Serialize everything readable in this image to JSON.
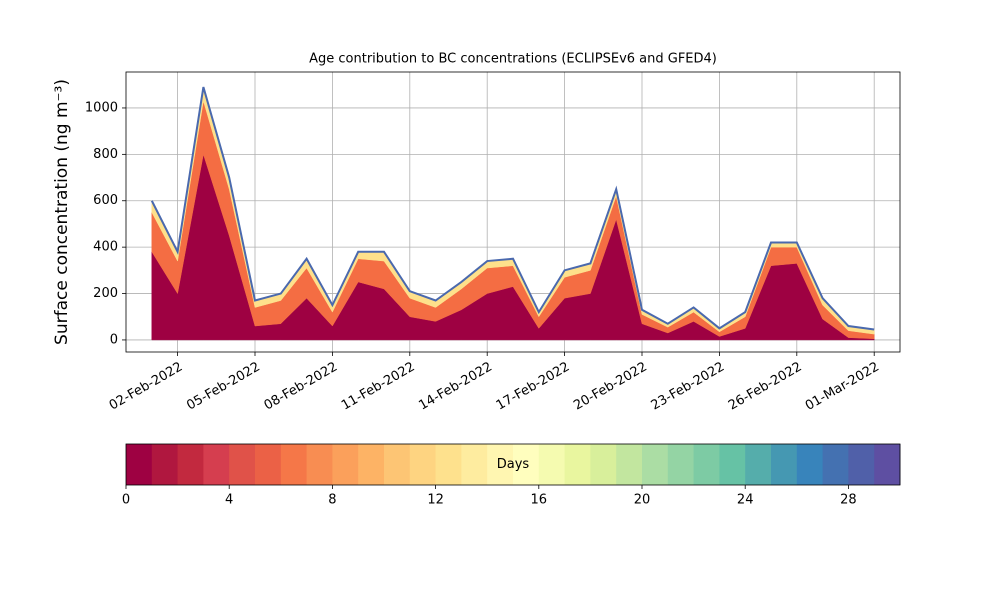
{
  "chart_data": {
    "type": "stacked_area",
    "title": "Age contribution to BC concentrations (ECLIPSEv6 and GFED4)",
    "y_label": "Surface concentration (ng m⁻³)",
    "x": [
      "2022-02-01",
      "2022-02-02",
      "2022-02-03",
      "2022-02-04",
      "2022-02-05",
      "2022-02-06",
      "2022-02-07",
      "2022-02-08",
      "2022-02-09",
      "2022-02-10",
      "2022-02-11",
      "2022-02-12",
      "2022-02-13",
      "2022-02-14",
      "2022-02-15",
      "2022-02-16",
      "2022-02-17",
      "2022-02-18",
      "2022-02-19",
      "2022-02-20",
      "2022-02-21",
      "2022-02-22",
      "2022-02-23",
      "2022-02-24",
      "2022-02-25",
      "2022-02-26",
      "2022-02-27",
      "2022-02-28",
      "2022-03-01"
    ],
    "series": [
      {
        "color": "#9e0142",
        "values": [
          380,
          200,
          800,
          450,
          60,
          70,
          180,
          60,
          250,
          220,
          100,
          80,
          130,
          200,
          230,
          50,
          180,
          200,
          520,
          70,
          30,
          80,
          15,
          50,
          320,
          330,
          90,
          10,
          5
        ]
      },
      {
        "color": "#f46d43",
        "values": [
          170,
          140,
          230,
          200,
          80,
          100,
          130,
          60,
          100,
          120,
          80,
          60,
          90,
          110,
          90,
          50,
          90,
          100,
          100,
          40,
          25,
          40,
          20,
          50,
          80,
          70,
          60,
          30,
          20
        ]
      },
      {
        "color": "#fee08b",
        "values": [
          50,
          40,
          60,
          50,
          30,
          30,
          40,
          30,
          30,
          40,
          30,
          30,
          30,
          30,
          30,
          20,
          30,
          30,
          30,
          20,
          15,
          20,
          15,
          20,
          20,
          20,
          30,
          20,
          20
        ]
      }
    ],
    "outline_color": "#4a69ae",
    "xlim": [
      "2022-01-31",
      "2022-03-02"
    ],
    "xticks": [
      {
        "value": "2022-02-02",
        "label": "02-Feb-2022"
      },
      {
        "value": "2022-02-05",
        "label": "05-Feb-2022"
      },
      {
        "value": "2022-02-08",
        "label": "08-Feb-2022"
      },
      {
        "value": "2022-02-11",
        "label": "11-Feb-2022"
      },
      {
        "value": "2022-02-14",
        "label": "14-Feb-2022"
      },
      {
        "value": "2022-02-17",
        "label": "17-Feb-2022"
      },
      {
        "value": "2022-02-20",
        "label": "20-Feb-2022"
      },
      {
        "value": "2022-02-23",
        "label": "23-Feb-2022"
      },
      {
        "value": "2022-02-26",
        "label": "26-Feb-2022"
      },
      {
        "value": "2022-03-01",
        "label": "01-Mar-2022"
      }
    ],
    "ylim": [
      -52,
      1155
    ],
    "yticks": [
      0,
      200,
      400,
      600,
      800,
      1000
    ],
    "grid": true,
    "colorbar": {
      "label": "Days",
      "lim": [
        0,
        30
      ],
      "ticks": [
        0,
        4,
        8,
        12,
        16,
        20,
        24,
        28
      ],
      "colors": [
        "#9e0142",
        "#b0173f",
        "#c2293f",
        "#d53e4f",
        "#e05249",
        "#eb6146",
        "#f57748",
        "#f88d52",
        "#fba05b",
        "#fdb365",
        "#fdc574",
        "#fed481",
        "#fee18d",
        "#feec9f",
        "#fff6b1",
        "#fffebe",
        "#f5fbb0",
        "#e9f69f",
        "#d8ef9b",
        "#c2e69f",
        "#abdda4",
        "#94d4a4",
        "#7dcba4",
        "#66c2a5",
        "#55adab",
        "#4598b2",
        "#3884bb",
        "#4471b1",
        "#5060a9",
        "#5e4fa2"
      ]
    }
  }
}
